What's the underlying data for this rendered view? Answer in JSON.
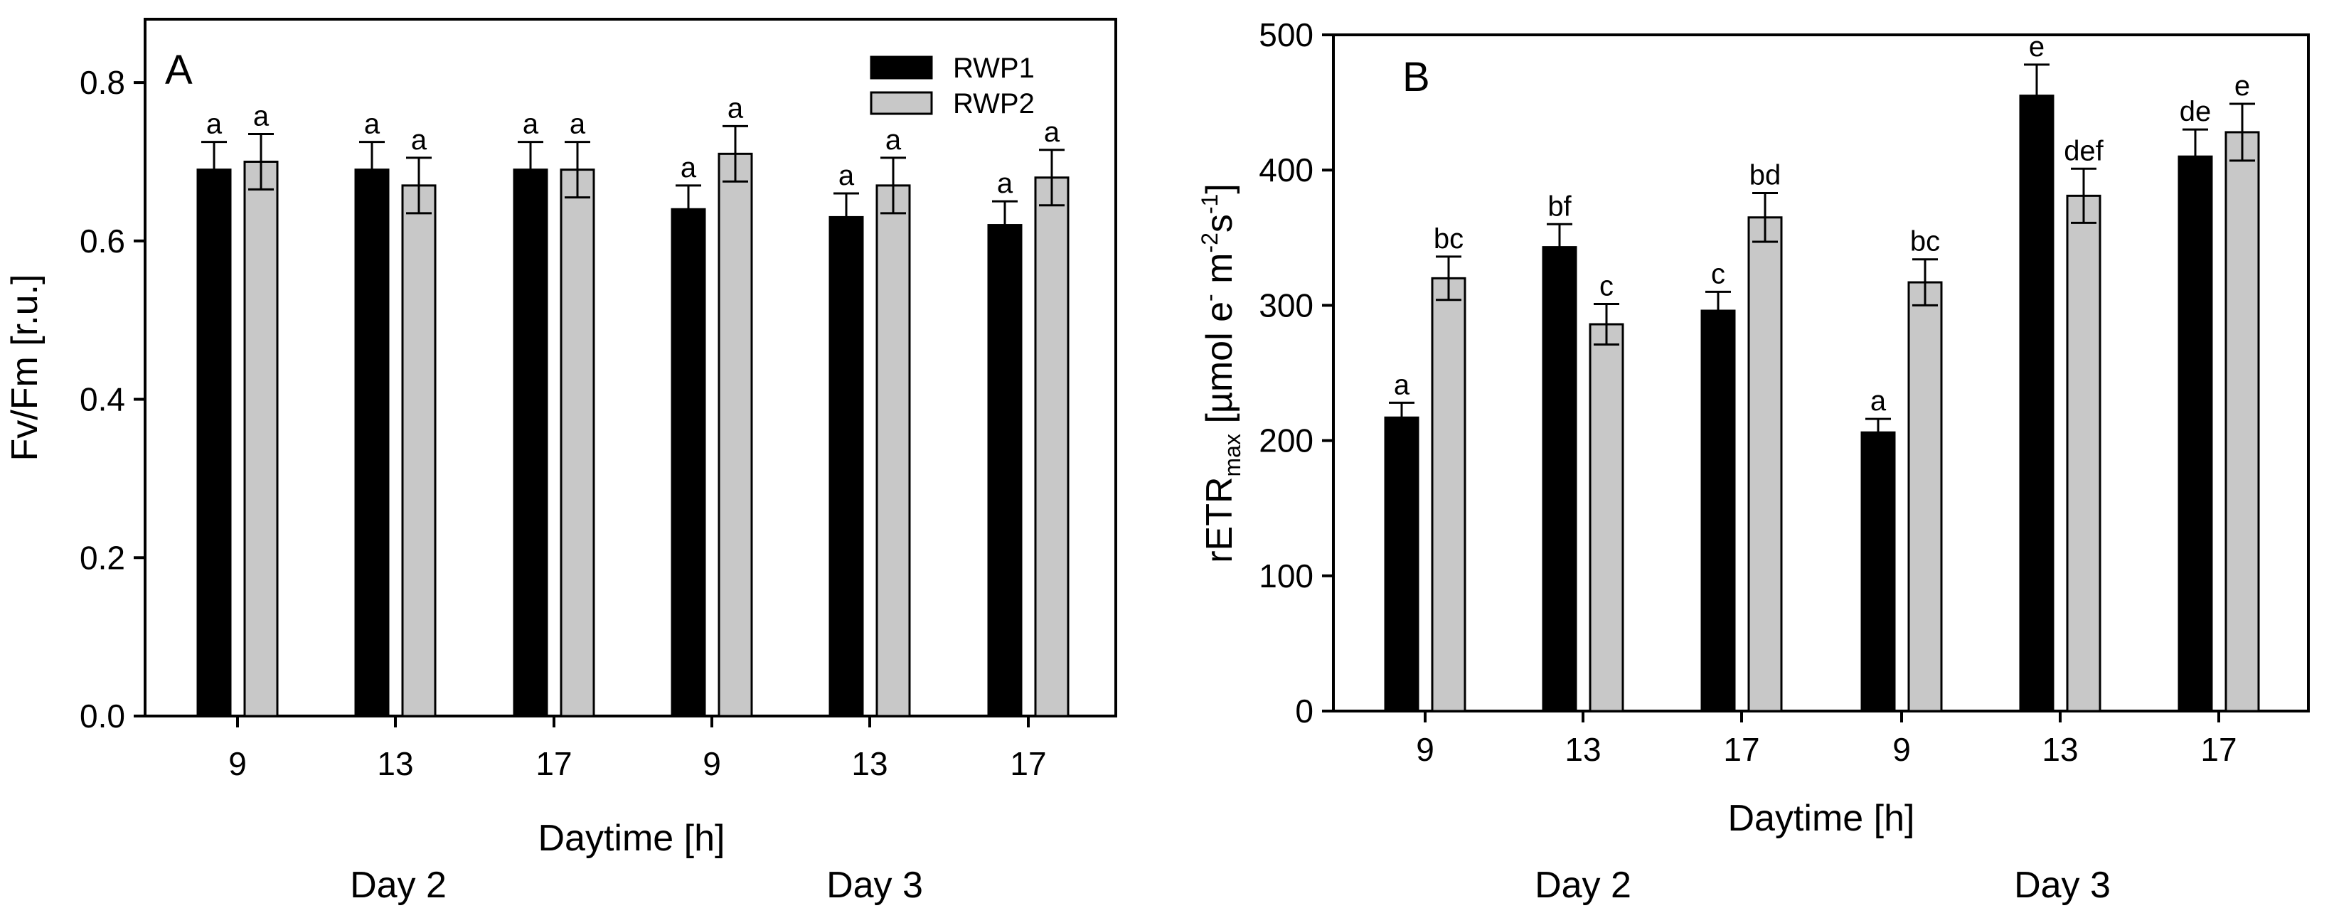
{
  "chart_data": [
    {
      "type": "bar",
      "panel_label": "A",
      "ylabel": "Fv/Fm [r.u.]",
      "xlabel": "Daytime [h]",
      "ylim": [
        0,
        0.88
      ],
      "yticks": [
        0.0,
        0.2,
        0.4,
        0.6,
        0.8
      ],
      "ytick_labels": [
        "0.0",
        "0.2",
        "0.4",
        "0.6",
        "0.8"
      ],
      "categories": [
        "9",
        "13",
        "17",
        "9",
        "13",
        "17"
      ],
      "day_labels": [
        "Day 2",
        "Day 3"
      ],
      "legend": {
        "position": "top-right",
        "entries": [
          "RWP1",
          "RWP2"
        ]
      },
      "series": [
        {
          "name": "RWP1",
          "color": "#000000",
          "values": [
            0.69,
            0.69,
            0.69,
            0.64,
            0.63,
            0.62
          ],
          "errors": [
            0.035,
            0.035,
            0.035,
            0.03,
            0.03,
            0.03
          ],
          "sig": [
            "a",
            "a",
            "a",
            "a",
            "a",
            "a"
          ]
        },
        {
          "name": "RWP2",
          "color": "#c8c8c8",
          "values": [
            0.7,
            0.67,
            0.69,
            0.71,
            0.67,
            0.68
          ],
          "errors": [
            0.035,
            0.035,
            0.035,
            0.035,
            0.035,
            0.035
          ],
          "sig": [
            "a",
            "a",
            "a",
            "a",
            "a",
            "a"
          ]
        }
      ]
    },
    {
      "type": "bar",
      "panel_label": "B",
      "ylabel_main": "rETR",
      "ylabel_sub": "max",
      "ylabel_unit": "[µmol e",
      "ylabel_sup1": "-",
      "ylabel_m": " m",
      "ylabel_sup2": "-2",
      "ylabel_s": "s",
      "ylabel_sup3": "-1",
      "ylabel_end": "]",
      "xlabel": "Daytime [h]",
      "ylim": [
        0,
        500
      ],
      "yticks": [
        0,
        100,
        200,
        300,
        400,
        500
      ],
      "ytick_labels": [
        "0",
        "100",
        "200",
        "300",
        "400",
        "500"
      ],
      "categories": [
        "9",
        "13",
        "17",
        "9",
        "13",
        "17"
      ],
      "day_labels": [
        "Day 2",
        "Day 3"
      ],
      "series": [
        {
          "name": "RWP1",
          "color": "#000000",
          "values": [
            217,
            343,
            296,
            206,
            455,
            410
          ],
          "errors": [
            11,
            17,
            14,
            10,
            23,
            20
          ],
          "sig": [
            "a",
            "bf",
            "c",
            "a",
            "e",
            "de"
          ]
        },
        {
          "name": "RWP2",
          "color": "#c8c8c8",
          "values": [
            320,
            286,
            365,
            317,
            381,
            428
          ],
          "errors": [
            16,
            15,
            18,
            17,
            20,
            21
          ],
          "sig": [
            "bc",
            "c",
            "bd",
            "bc",
            "def",
            "e"
          ]
        }
      ]
    }
  ]
}
